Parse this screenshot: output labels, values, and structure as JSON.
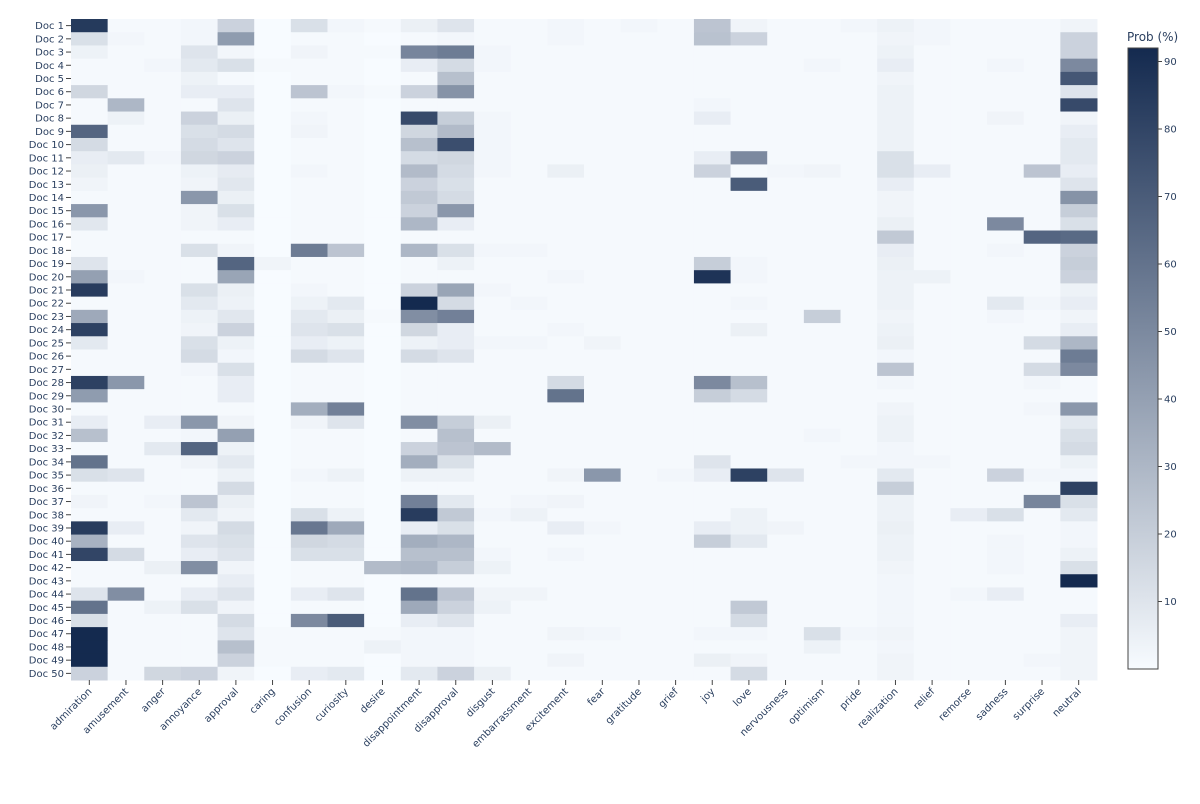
{
  "chart_data": {
    "type": "heatmap",
    "title": "",
    "xlabel": "",
    "ylabel": "",
    "x": [
      "admiration",
      "amusement",
      "anger",
      "annoyance",
      "approval",
      "caring",
      "confusion",
      "curiosity",
      "desire",
      "disappointment",
      "disapproval",
      "disgust",
      "embarrassment",
      "excitement",
      "fear",
      "gratitude",
      "grief",
      "joy",
      "love",
      "nervousness",
      "optimism",
      "pride",
      "realization",
      "relief",
      "remorse",
      "sadness",
      "surprise",
      "neutral"
    ],
    "y": [
      "Doc 1",
      "Doc 2",
      "Doc 3",
      "Doc 4",
      "Doc 5",
      "Doc 6",
      "Doc 7",
      "Doc 8",
      "Doc 9",
      "Doc 10",
      "Doc 11",
      "Doc 12",
      "Doc 13",
      "Doc 14",
      "Doc 15",
      "Doc 16",
      "Doc 17",
      "Doc 18",
      "Doc 19",
      "Doc 20",
      "Doc 21",
      "Doc 22",
      "Doc 23",
      "Doc 24",
      "Doc 25",
      "Doc 26",
      "Doc 27",
      "Doc 28",
      "Doc 29",
      "Doc 30",
      "Doc 31",
      "Doc 32",
      "Doc 33",
      "Doc 34",
      "Doc 35",
      "Doc 36",
      "Doc 37",
      "Doc 38",
      "Doc 39",
      "Doc 40",
      "Doc 41",
      "Doc 42",
      "Doc 43",
      "Doc 44",
      "Doc 45",
      "Doc 46",
      "Doc 47",
      "Doc 48",
      "Doc 49",
      "Doc 50"
    ],
    "z": [
      [
        85,
        1,
        1,
        2,
        18,
        0,
        12,
        2,
        1,
        5,
        10,
        1,
        1,
        2,
        1,
        2,
        1,
        24,
        3,
        1,
        1,
        2,
        4,
        2,
        1,
        1,
        1,
        3
      ],
      [
        12,
        2,
        1,
        2,
        42,
        0,
        1,
        1,
        0,
        1,
        2,
        1,
        1,
        2,
        1,
        1,
        1,
        25,
        18,
        1,
        1,
        1,
        3,
        2,
        1,
        1,
        1,
        18
      ],
      [
        4,
        1,
        1,
        10,
        2,
        0,
        3,
        1,
        1,
        52,
        56,
        2,
        1,
        1,
        1,
        1,
        1,
        1,
        1,
        1,
        1,
        1,
        4,
        1,
        1,
        1,
        1,
        18
      ],
      [
        1,
        1,
        2,
        8,
        12,
        1,
        1,
        1,
        0,
        6,
        14,
        2,
        1,
        1,
        1,
        1,
        1,
        1,
        1,
        1,
        2,
        1,
        6,
        1,
        1,
        2,
        1,
        50
      ],
      [
        1,
        1,
        1,
        4,
        1,
        0,
        1,
        1,
        0,
        1,
        26,
        1,
        1,
        1,
        1,
        1,
        1,
        1,
        1,
        1,
        1,
        1,
        3,
        1,
        1,
        1,
        1,
        72
      ],
      [
        16,
        1,
        1,
        6,
        6,
        0,
        24,
        2,
        1,
        18,
        46,
        1,
        1,
        1,
        1,
        1,
        1,
        1,
        1,
        1,
        1,
        1,
        4,
        1,
        1,
        1,
        1,
        10
      ],
      [
        1,
        30,
        1,
        1,
        10,
        0,
        1,
        1,
        0,
        1,
        1,
        1,
        1,
        1,
        1,
        1,
        1,
        2,
        1,
        1,
        1,
        1,
        4,
        1,
        1,
        1,
        1,
        78
      ],
      [
        1,
        4,
        1,
        18,
        5,
        0,
        2,
        1,
        0,
        78,
        20,
        2,
        1,
        1,
        1,
        1,
        1,
        6,
        1,
        1,
        1,
        1,
        4,
        1,
        1,
        3,
        1,
        3
      ],
      [
        66,
        1,
        1,
        12,
        14,
        0,
        3,
        1,
        0,
        16,
        28,
        2,
        1,
        1,
        1,
        1,
        1,
        1,
        1,
        1,
        1,
        1,
        4,
        1,
        1,
        1,
        1,
        6
      ],
      [
        14,
        1,
        1,
        14,
        10,
        0,
        1,
        1,
        0,
        26,
        76,
        2,
        1,
        1,
        1,
        1,
        1,
        1,
        1,
        1,
        1,
        1,
        4,
        1,
        1,
        1,
        1,
        8
      ],
      [
        6,
        8,
        2,
        16,
        18,
        0,
        1,
        1,
        0,
        14,
        16,
        2,
        1,
        1,
        1,
        1,
        1,
        6,
        50,
        1,
        1,
        1,
        12,
        1,
        1,
        1,
        1,
        8
      ],
      [
        5,
        1,
        1,
        4,
        7,
        0,
        2,
        1,
        0,
        28,
        14,
        2,
        1,
        5,
        1,
        1,
        1,
        18,
        1,
        2,
        3,
        1,
        12,
        6,
        1,
        1,
        24,
        6
      ],
      [
        3,
        1,
        1,
        3,
        9,
        0,
        1,
        1,
        0,
        18,
        12,
        1,
        1,
        1,
        1,
        1,
        1,
        1,
        70,
        1,
        1,
        1,
        6,
        1,
        1,
        1,
        1,
        10
      ],
      [
        1,
        1,
        1,
        44,
        5,
        0,
        1,
        1,
        0,
        22,
        14,
        1,
        1,
        1,
        1,
        1,
        1,
        1,
        1,
        1,
        1,
        1,
        3,
        1,
        1,
        1,
        1,
        46
      ],
      [
        44,
        1,
        1,
        3,
        12,
        0,
        1,
        1,
        0,
        18,
        44,
        1,
        1,
        1,
        1,
        1,
        1,
        1,
        1,
        1,
        1,
        1,
        3,
        1,
        1,
        1,
        1,
        20
      ],
      [
        9,
        1,
        1,
        3,
        6,
        0,
        1,
        1,
        0,
        30,
        6,
        1,
        1,
        1,
        1,
        1,
        1,
        1,
        1,
        1,
        1,
        1,
        5,
        1,
        1,
        50,
        1,
        12
      ],
      [
        1,
        1,
        1,
        1,
        1,
        0,
        1,
        1,
        0,
        1,
        1,
        1,
        1,
        1,
        1,
        1,
        1,
        1,
        1,
        1,
        1,
        1,
        22,
        1,
        1,
        1,
        66,
        64
      ],
      [
        1,
        1,
        1,
        12,
        3,
        0,
        56,
        24,
        0,
        30,
        12,
        2,
        2,
        1,
        1,
        1,
        1,
        1,
        1,
        1,
        1,
        1,
        6,
        1,
        1,
        2,
        1,
        18
      ],
      [
        10,
        1,
        1,
        1,
        66,
        3,
        1,
        1,
        0,
        1,
        4,
        1,
        1,
        1,
        1,
        1,
        1,
        20,
        2,
        1,
        1,
        1,
        5,
        1,
        1,
        1,
        1,
        20
      ],
      [
        40,
        2,
        1,
        1,
        38,
        0,
        1,
        1,
        0,
        1,
        1,
        1,
        1,
        2,
        1,
        1,
        1,
        88,
        2,
        1,
        1,
        1,
        4,
        4,
        1,
        1,
        1,
        18
      ],
      [
        84,
        1,
        1,
        12,
        5,
        0,
        2,
        1,
        0,
        18,
        38,
        2,
        1,
        1,
        1,
        1,
        1,
        1,
        1,
        1,
        1,
        1,
        4,
        1,
        1,
        1,
        1,
        4
      ],
      [
        1,
        1,
        1,
        8,
        4,
        0,
        4,
        8,
        0,
        92,
        14,
        1,
        2,
        1,
        1,
        1,
        1,
        1,
        2,
        1,
        1,
        1,
        4,
        1,
        1,
        8,
        2,
        6
      ],
      [
        36,
        1,
        1,
        4,
        9,
        0,
        8,
        5,
        1,
        48,
        54,
        1,
        1,
        1,
        1,
        1,
        1,
        1,
        1,
        1,
        20,
        1,
        3,
        1,
        1,
        2,
        1,
        3
      ],
      [
        82,
        1,
        1,
        3,
        18,
        0,
        10,
        12,
        0,
        16,
        6,
        1,
        1,
        2,
        1,
        1,
        1,
        1,
        5,
        1,
        1,
        1,
        4,
        1,
        1,
        1,
        1,
        6
      ],
      [
        8,
        1,
        1,
        12,
        4,
        0,
        6,
        4,
        0,
        4,
        6,
        2,
        2,
        1,
        3,
        1,
        1,
        1,
        1,
        1,
        1,
        1,
        5,
        1,
        1,
        1,
        14,
        30
      ],
      [
        1,
        1,
        1,
        14,
        2,
        0,
        14,
        10,
        0,
        14,
        10,
        1,
        1,
        1,
        1,
        1,
        1,
        1,
        1,
        1,
        1,
        1,
        2,
        1,
        1,
        1,
        1,
        56
      ],
      [
        1,
        1,
        1,
        2,
        12,
        0,
        1,
        1,
        0,
        1,
        1,
        1,
        1,
        1,
        1,
        1,
        1,
        1,
        1,
        1,
        1,
        1,
        24,
        1,
        1,
        1,
        14,
        50
      ],
      [
        82,
        44,
        1,
        1,
        6,
        0,
        1,
        1,
        0,
        1,
        1,
        1,
        1,
        14,
        1,
        1,
        1,
        50,
        26,
        1,
        1,
        1,
        2,
        1,
        1,
        1,
        2,
        1
      ],
      [
        42,
        1,
        1,
        1,
        6,
        0,
        1,
        1,
        0,
        1,
        1,
        1,
        1,
        60,
        1,
        1,
        1,
        20,
        14,
        1,
        1,
        1,
        1,
        1,
        1,
        1,
        1,
        1
      ],
      [
        1,
        1,
        1,
        1,
        1,
        0,
        34,
        54,
        0,
        1,
        1,
        1,
        1,
        1,
        1,
        1,
        1,
        1,
        1,
        1,
        1,
        1,
        3,
        1,
        1,
        1,
        2,
        44
      ],
      [
        6,
        1,
        6,
        44,
        3,
        0,
        3,
        10,
        0,
        48,
        20,
        5,
        1,
        1,
        1,
        1,
        1,
        1,
        1,
        1,
        1,
        1,
        4,
        1,
        1,
        1,
        1,
        8
      ],
      [
        26,
        1,
        1,
        2,
        40,
        0,
        1,
        1,
        0,
        1,
        26,
        1,
        1,
        1,
        1,
        1,
        1,
        1,
        1,
        1,
        2,
        1,
        4,
        1,
        1,
        1,
        1,
        12
      ],
      [
        1,
        1,
        8,
        66,
        4,
        0,
        1,
        1,
        0,
        18,
        24,
        28,
        1,
        1,
        1,
        1,
        1,
        1,
        1,
        1,
        1,
        1,
        2,
        1,
        1,
        1,
        1,
        14
      ],
      [
        60,
        1,
        1,
        3,
        8,
        0,
        1,
        1,
        0,
        34,
        12,
        1,
        1,
        1,
        1,
        1,
        1,
        10,
        1,
        1,
        1,
        2,
        2,
        2,
        1,
        1,
        1,
        4
      ],
      [
        12,
        10,
        1,
        1,
        4,
        0,
        2,
        4,
        0,
        4,
        4,
        1,
        1,
        3,
        44,
        1,
        2,
        6,
        82,
        10,
        1,
        1,
        8,
        1,
        1,
        18,
        2,
        2
      ],
      [
        1,
        1,
        1,
        1,
        14,
        0,
        1,
        1,
        0,
        1,
        1,
        1,
        1,
        1,
        1,
        1,
        1,
        1,
        1,
        1,
        1,
        1,
        20,
        1,
        1,
        1,
        1,
        82
      ],
      [
        3,
        1,
        2,
        24,
        5,
        0,
        1,
        1,
        0,
        54,
        8,
        1,
        2,
        3,
        1,
        1,
        1,
        1,
        1,
        1,
        1,
        1,
        4,
        1,
        1,
        1,
        52,
        12
      ],
      [
        1,
        1,
        1,
        8,
        3,
        0,
        12,
        4,
        0,
        84,
        22,
        2,
        4,
        1,
        1,
        1,
        1,
        1,
        4,
        1,
        1,
        1,
        4,
        1,
        6,
        12,
        1,
        8
      ],
      [
        84,
        6,
        1,
        3,
        14,
        0,
        58,
        36,
        0,
        6,
        12,
        1,
        1,
        6,
        2,
        1,
        1,
        6,
        4,
        3,
        1,
        1,
        5,
        1,
        1,
        1,
        1,
        2
      ],
      [
        32,
        1,
        1,
        10,
        12,
        0,
        16,
        14,
        0,
        34,
        30,
        1,
        1,
        1,
        1,
        1,
        1,
        20,
        8,
        1,
        1,
        1,
        4,
        1,
        1,
        2,
        1,
        2
      ],
      [
        80,
        14,
        1,
        6,
        10,
        0,
        12,
        12,
        0,
        26,
        26,
        2,
        1,
        2,
        1,
        1,
        1,
        1,
        1,
        1,
        1,
        1,
        4,
        1,
        1,
        2,
        1,
        4
      ],
      [
        1,
        1,
        5,
        48,
        3,
        0,
        1,
        1,
        28,
        30,
        20,
        4,
        1,
        1,
        1,
        1,
        1,
        1,
        1,
        1,
        1,
        1,
        3,
        1,
        1,
        2,
        1,
        12
      ],
      [
        1,
        1,
        1,
        1,
        6,
        0,
        1,
        1,
        0,
        1,
        1,
        1,
        1,
        1,
        1,
        1,
        1,
        1,
        1,
        1,
        1,
        1,
        2,
        1,
        1,
        1,
        1,
        92
      ],
      [
        10,
        48,
        1,
        6,
        10,
        0,
        6,
        10,
        0,
        60,
        24,
        3,
        3,
        1,
        1,
        1,
        1,
        1,
        1,
        1,
        1,
        1,
        2,
        1,
        2,
        6,
        1,
        1
      ],
      [
        60,
        1,
        4,
        12,
        3,
        0,
        1,
        1,
        0,
        36,
        18,
        4,
        1,
        1,
        1,
        1,
        1,
        1,
        22,
        1,
        1,
        1,
        2,
        1,
        1,
        1,
        1,
        1
      ],
      [
        12,
        1,
        1,
        1,
        14,
        0,
        50,
        70,
        0,
        6,
        10,
        1,
        1,
        1,
        1,
        1,
        1,
        1,
        14,
        1,
        1,
        1,
        2,
        1,
        1,
        1,
        1,
        6
      ],
      [
        92,
        1,
        1,
        1,
        10,
        1,
        1,
        1,
        1,
        2,
        2,
        1,
        1,
        3,
        2,
        1,
        1,
        2,
        2,
        1,
        12,
        2,
        3,
        1,
        1,
        1,
        1,
        3
      ],
      [
        92,
        1,
        1,
        1,
        26,
        1,
        1,
        1,
        4,
        2,
        2,
        1,
        1,
        1,
        1,
        1,
        1,
        1,
        1,
        1,
        4,
        1,
        2,
        1,
        1,
        1,
        1,
        3
      ],
      [
        92,
        1,
        1,
        1,
        18,
        1,
        1,
        1,
        0,
        2,
        2,
        1,
        1,
        3,
        1,
        1,
        1,
        5,
        3,
        1,
        1,
        1,
        3,
        1,
        1,
        1,
        2,
        3
      ],
      [
        18,
        1,
        16,
        18,
        3,
        0,
        6,
        8,
        0,
        8,
        18,
        5,
        1,
        1,
        1,
        1,
        1,
        1,
        14,
        1,
        1,
        1,
        3,
        1,
        1,
        1,
        1,
        3
      ]
    ],
    "zmin": 0,
    "zmax": 92,
    "colorscale": [
      "#f7fbff",
      "#142a4f"
    ],
    "colorbar_title": "Prob (%)",
    "colorbar_ticks": [
      10,
      20,
      30,
      40,
      50,
      60,
      70,
      80,
      90
    ],
    "grid": false
  }
}
